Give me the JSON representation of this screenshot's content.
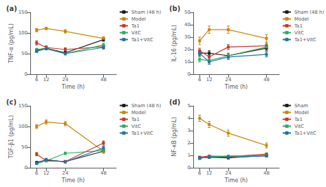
{
  "chart_data": [
    {
      "type": "line",
      "title": "(a)",
      "xlabel": "Time (h)",
      "ylabel": "TNF-α (pg/mL)",
      "x": [
        6,
        12,
        24,
        48
      ],
      "xlim": [
        2,
        56
      ],
      "xticks": [
        6,
        12,
        24,
        48
      ],
      "ylim": [
        0,
        150
      ],
      "yticks": [
        0,
        50,
        100,
        150
      ],
      "grid": false,
      "legend": "right",
      "marker": "square",
      "series": [
        {
          "name": "Sham (48 h)",
          "color": "#1a1a1a",
          "values": [
            57,
            63,
            52,
            84
          ],
          "errors": [
            3,
            3,
            3,
            4
          ]
        },
        {
          "name": "Model",
          "color": "#c8860a",
          "values": [
            107,
            111,
            104,
            87
          ],
          "errors": [
            4,
            3,
            4,
            4
          ]
        },
        {
          "name": "Ta1",
          "color": "#c0392b",
          "values": [
            76,
            65,
            60,
            67
          ],
          "errors": [
            5,
            4,
            4,
            4
          ]
        },
        {
          "name": "VitC",
          "color": "#27ae60",
          "values": [
            60,
            63,
            50,
            71
          ],
          "errors": [
            3,
            4,
            3,
            4
          ]
        },
        {
          "name": "Ta1+VitC",
          "color": "#2471a3",
          "values": [
            56,
            62,
            50,
            65
          ],
          "errors": [
            3,
            3,
            3,
            4
          ]
        }
      ]
    },
    {
      "type": "line",
      "title": "(b)",
      "xlabel": "Time (h)",
      "ylabel": "IL-16 (pg/mL)",
      "x": [
        6,
        12,
        24,
        48
      ],
      "xlim": [
        2,
        56
      ],
      "xticks": [
        6,
        12,
        24,
        48
      ],
      "ylim": [
        0,
        50
      ],
      "yticks": [
        0,
        10,
        20,
        30,
        40,
        50
      ],
      "grid": false,
      "legend": "right",
      "marker": "square",
      "series": [
        {
          "name": "Sham (48 h)",
          "color": "#1a1a1a",
          "values": [
            17,
            17,
            15,
            21
          ],
          "errors": [
            2,
            2,
            2,
            2
          ]
        },
        {
          "name": "Model",
          "color": "#c8860a",
          "values": [
            27,
            36,
            36,
            29
          ],
          "errors": [
            3,
            3,
            3,
            3
          ]
        },
        {
          "name": "Ta1",
          "color": "#c0392b",
          "values": [
            19,
            14,
            22,
            23
          ],
          "errors": [
            2,
            2,
            2,
            2
          ]
        },
        {
          "name": "VitC",
          "color": "#27ae60",
          "values": [
            12,
            11,
            15,
            22
          ],
          "errors": [
            2,
            2,
            2,
            2
          ]
        },
        {
          "name": "Ta1+VitC",
          "color": "#2471a3",
          "values": [
            17,
            10,
            14,
            16
          ],
          "errors": [
            2,
            2,
            2,
            2
          ]
        }
      ]
    },
    {
      "type": "line",
      "title": "(c)",
      "xlabel": "Time (h)",
      "ylabel": "TGF-β1 (pg/mL)",
      "x": [
        6,
        12,
        24,
        48
      ],
      "xlim": [
        2,
        56
      ],
      "xticks": [
        6,
        12,
        24,
        48
      ],
      "ylim": [
        0,
        150
      ],
      "yticks": [
        0,
        50,
        100,
        150
      ],
      "grid": false,
      "legend": "right",
      "marker": "square",
      "series": [
        {
          "name": "Sham (48 h)",
          "color": "#1a1a1a",
          "values": [
            13,
            18,
            15,
            40
          ],
          "errors": [
            2,
            2,
            2,
            3
          ]
        },
        {
          "name": "Model",
          "color": "#c8860a",
          "values": [
            100,
            111,
            107,
            40
          ],
          "errors": [
            5,
            5,
            5,
            5
          ]
        },
        {
          "name": "Ta1",
          "color": "#c0392b",
          "values": [
            33,
            17,
            15,
            60
          ],
          "errors": [
            4,
            3,
            3,
            5
          ]
        },
        {
          "name": "VitC",
          "color": "#27ae60",
          "values": [
            10,
            17,
            35,
            42
          ],
          "errors": [
            2,
            3,
            3,
            4
          ]
        },
        {
          "name": "Ta1+VitC",
          "color": "#2471a3",
          "values": [
            11,
            20,
            14,
            48
          ],
          "errors": [
            2,
            3,
            2,
            4
          ]
        }
      ]
    },
    {
      "type": "line",
      "title": "(d)",
      "xlabel": "Time (h)",
      "ylabel": "NF-κB (pg/mL)",
      "x": [
        6,
        12,
        24,
        48
      ],
      "xlim": [
        2,
        56
      ],
      "xticks": [
        6,
        12,
        24,
        48
      ],
      "ylim": [
        0,
        5
      ],
      "yticks": [
        0,
        1,
        2,
        3,
        4,
        5
      ],
      "grid": false,
      "legend": "right",
      "marker": "square",
      "series": [
        {
          "name": "Sham",
          "color": "#1a1a1a",
          "values": [
            0.8,
            0.85,
            0.8,
            1.0
          ],
          "errors": [
            0.08,
            0.08,
            0.08,
            0.1
          ]
        },
        {
          "name": "Model",
          "color": "#c8860a",
          "values": [
            4.0,
            3.5,
            2.8,
            1.8
          ],
          "errors": [
            0.25,
            0.25,
            0.25,
            0.2
          ]
        },
        {
          "name": "Ta1",
          "color": "#c0392b",
          "values": [
            0.85,
            0.95,
            0.9,
            1.1
          ],
          "errors": [
            0.08,
            0.08,
            0.08,
            0.1
          ]
        },
        {
          "name": "VitC",
          "color": "#27ae60",
          "values": [
            0.75,
            0.9,
            0.95,
            1.0
          ],
          "errors": [
            0.08,
            0.08,
            0.08,
            0.1
          ]
        },
        {
          "name": "Ta1+VitC",
          "color": "#2471a3",
          "values": [
            0.8,
            0.85,
            0.85,
            0.95
          ],
          "errors": [
            0.08,
            0.08,
            0.08,
            0.08
          ]
        }
      ]
    }
  ]
}
